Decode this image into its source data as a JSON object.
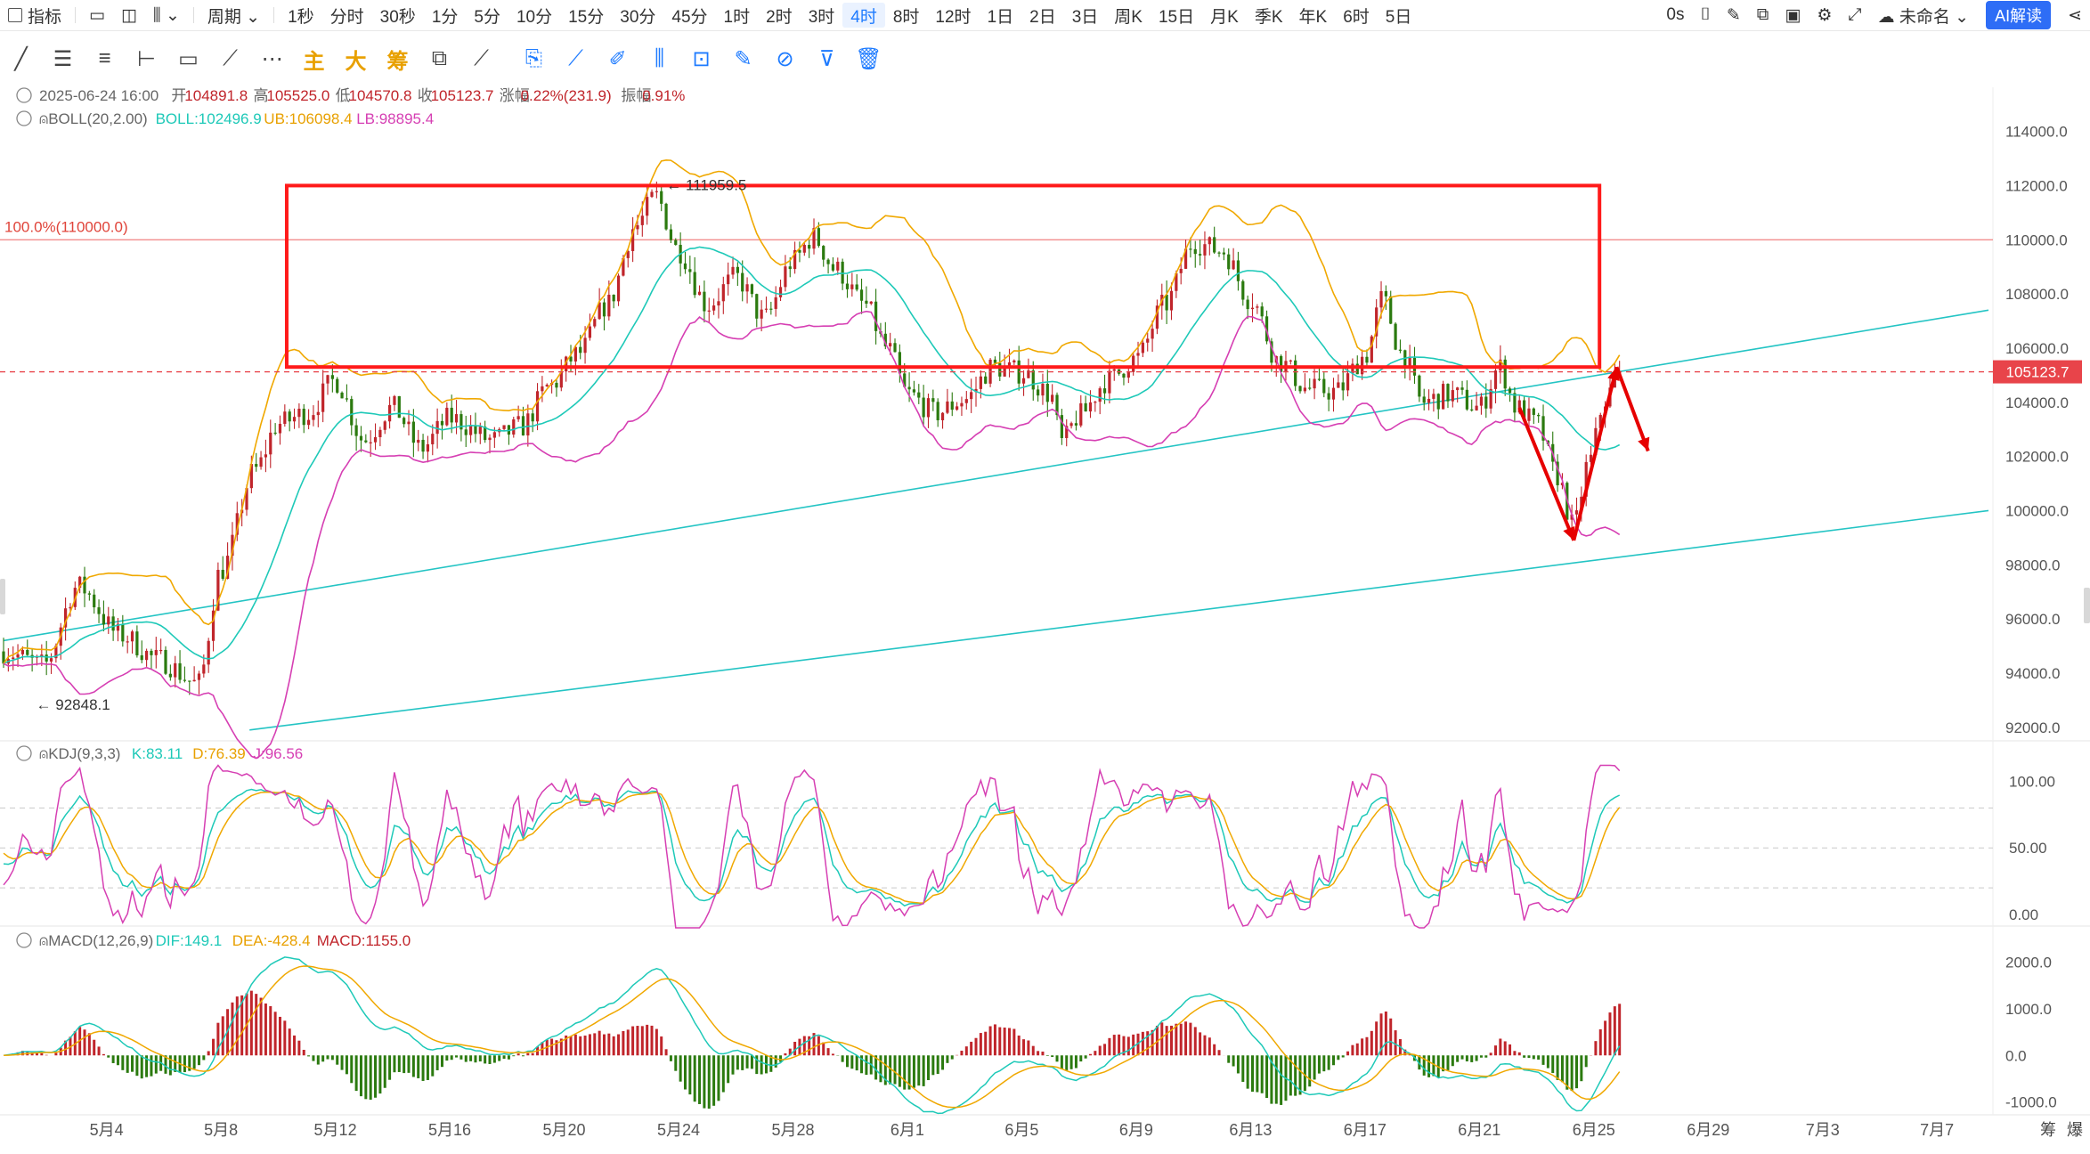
{
  "topbar": {
    "items": [
      "指标",
      "周期",
      "1秒",
      "分时",
      "30秒",
      "1分",
      "5分",
      "10分",
      "15分",
      "30分",
      "45分",
      "1时",
      "2时",
      "3时",
      "4时",
      "8时",
      "12时",
      "1日",
      "2日",
      "3日",
      "周K",
      "15日",
      "月K",
      "季K",
      "年K",
      "6时",
      "5日"
    ],
    "active": "4时",
    "right": {
      "delay": "0s",
      "name": "未命名",
      "ai": "AI解读"
    }
  },
  "draw_tools": {
    "main": "主",
    "big": "大",
    "chip": "筹"
  },
  "colors": {
    "up": "#c0252b",
    "down": "#2b7a0f",
    "boll_mid": "#1ec9b8",
    "boll_up": "#f0a800",
    "boll_low": "#d63fb3",
    "trend": "#24c4c4",
    "box": "#ff1a1a",
    "price_line": "#e8444a"
  },
  "info": {
    "date": "2025-06-24 16:00",
    "open_label": "开",
    "open": "104891.8",
    "high_label": "高",
    "high": "105525.0",
    "low_label": "低",
    "low": "104570.8",
    "close_label": "收",
    "close": "105123.7",
    "chg_label": "涨幅",
    "chg": "0.22%(231.9)",
    "amp_label": "振幅",
    "amp": "0.91%"
  },
  "boll": {
    "name": "BOLL(20,2.00)",
    "mid": "BOLL:102496.9",
    "ub": "UB:106098.4",
    "lb": "LB:98895.4"
  },
  "kdj": {
    "name": "KDJ(9,3,3)",
    "k": "K:83.11",
    "d": "D:76.39",
    "j": "J:96.56"
  },
  "macd": {
    "name": "MACD(12,26,9)",
    "dif": "DIF:149.1",
    "dea": "DEA:-428.4",
    "macd": "MACD:1155.0"
  },
  "fib_label": "100.0%(110000.0)",
  "hi_label": "111959.5",
  "lo_label": "92848.1",
  "last_price": "105123.7",
  "bottom_right": [
    "筹",
    "爆"
  ],
  "chart_data": {
    "type": "candlestick",
    "timeframe": "4时",
    "main": {
      "y_ticks": [
        "114000.0",
        "112000.0",
        "110000.0",
        "108000.0",
        "106000.0",
        "104000.0",
        "102000.0",
        "100000.0",
        "98000.0",
        "96000.0",
        "94000.0",
        "92000.0"
      ],
      "ylim": [
        91400,
        115400
      ],
      "x_ticks": [
        "5月4",
        "5月8",
        "5月12",
        "5月16",
        "5月20",
        "5月24",
        "5月28",
        "6月1",
        "6月5",
        "6月9",
        "6月13",
        "6月17",
        "6月21",
        "6月25",
        "6月29",
        "7月3",
        "7月7"
      ],
      "x_tick_days": [
        4,
        8,
        12,
        16,
        20,
        24,
        28,
        32,
        36,
        40,
        44,
        48,
        52,
        56,
        60,
        64,
        68
      ],
      "xlim_days": [
        0.4,
        69.8
      ],
      "price_anchors": [
        [
          0.4,
          94800
        ],
        [
          1.8,
          94300
        ],
        [
          3.0,
          97200
        ],
        [
          4.5,
          95400
        ],
        [
          5.8,
          94500
        ],
        [
          7.2,
          93600
        ],
        [
          8.0,
          97800
        ],
        [
          9.2,
          101500
        ],
        [
          10.0,
          103200
        ],
        [
          11.0,
          103600
        ],
        [
          12.0,
          104800
        ],
        [
          13.0,
          102600
        ],
        [
          14.0,
          103800
        ],
        [
          15.0,
          102300
        ],
        [
          16.0,
          103400
        ],
        [
          17.5,
          102600
        ],
        [
          18.5,
          103100
        ],
        [
          19.5,
          104600
        ],
        [
          20.5,
          105800
        ],
        [
          21.5,
          107600
        ],
        [
          22.5,
          110500
        ],
        [
          23.2,
          111600
        ],
        [
          24.0,
          109600
        ],
        [
          25.0,
          107600
        ],
        [
          26.0,
          108600
        ],
        [
          27.0,
          107100
        ],
        [
          28.0,
          109200
        ],
        [
          28.7,
          110100
        ],
        [
          29.5,
          108900
        ],
        [
          30.5,
          107600
        ],
        [
          31.3,
          106000
        ],
        [
          32.0,
          104300
        ],
        [
          33.0,
          103600
        ],
        [
          34.0,
          104100
        ],
        [
          35.0,
          105300
        ],
        [
          36.0,
          105100
        ],
        [
          37.0,
          104300
        ],
        [
          37.4,
          102500
        ],
        [
          38.0,
          103500
        ],
        [
          39.0,
          104800
        ],
        [
          40.0,
          105600
        ],
        [
          41.0,
          107600
        ],
        [
          42.0,
          109900
        ],
        [
          43.0,
          109600
        ],
        [
          44.0,
          107800
        ],
        [
          45.0,
          105500
        ],
        [
          46.0,
          104500
        ],
        [
          47.0,
          104400
        ],
        [
          48.0,
          105700
        ],
        [
          48.6,
          107800
        ],
        [
          49.3,
          105800
        ],
        [
          50.0,
          104000
        ],
        [
          51.0,
          104300
        ],
        [
          52.0,
          103800
        ],
        [
          52.7,
          105300
        ],
        [
          53.3,
          103800
        ],
        [
          54.0,
          103200
        ],
        [
          54.7,
          101300
        ],
        [
          55.3,
          99400
        ],
        [
          55.8,
          101700
        ],
        [
          56.4,
          104100
        ],
        [
          56.9,
          105100
        ]
      ],
      "annotations": {
        "fib_line_value": 110000,
        "box": {
          "x_days": [
            10.3,
            56.2
          ],
          "y": [
            105300,
            112000
          ]
        },
        "high_marker_day": 23.2,
        "low_marker_day": 1.6
      }
    },
    "kdj_panel": {
      "y_ticks": [
        "100.00",
        "50.00",
        "0.00"
      ],
      "ylim": [
        -12,
        115
      ],
      "dashed_levels": [
        80,
        50,
        20
      ]
    },
    "macd_panel": {
      "y_ticks": [
        "2000.0",
        "1000.0",
        "0.0",
        "-1000.0"
      ],
      "ylim": [
        -1200,
        2300
      ]
    }
  }
}
